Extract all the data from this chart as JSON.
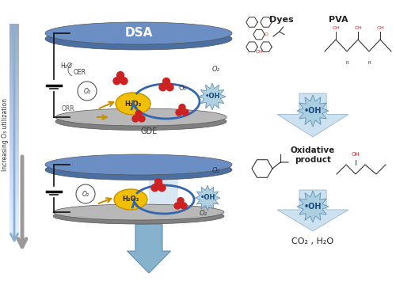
{
  "bg_color": "#ffffff",
  "dsa_color_top": "#6b8fc5",
  "dsa_color_side": "#4a6fa0",
  "gde_color_top": "#b8b8b8",
  "gde_color_side": "#808080",
  "h2o2_color": "#f0c000",
  "h2o2_edge": "#c89000",
  "ozone_red": "#cc2222",
  "circuit_color": "#111111",
  "blue_arrow_color": "#8ab0d0",
  "gray_arrow_color": "#aaaaaa",
  "big_arrow_color": "#7aaac8",
  "oh_burst_fill": "#a8ccdf",
  "oh_burst_edge": "#5588aa",
  "circ_arrow_color": "#3366aa",
  "yellow_arrow": "#c89000",
  "right_arrow_fill": "#c8dff0",
  "right_arrow_edge": "#90b0c8",
  "label_dsa": "DSA",
  "label_gde": "GDE",
  "label_orr": "ORR",
  "label_oer": "OER",
  "label_h2o": "H₂O",
  "label_h2o2": "H₂O₂",
  "label_o2": "O₂",
  "label_o3": "O₃",
  "label_oh": "•OH",
  "label_dyes": "Dyes",
  "label_pva": "PVA",
  "label_ox": "Oxidative\nproduct",
  "label_co2": "CO₂ , H₂O",
  "label_inc": "Increasing O₃ utilization"
}
